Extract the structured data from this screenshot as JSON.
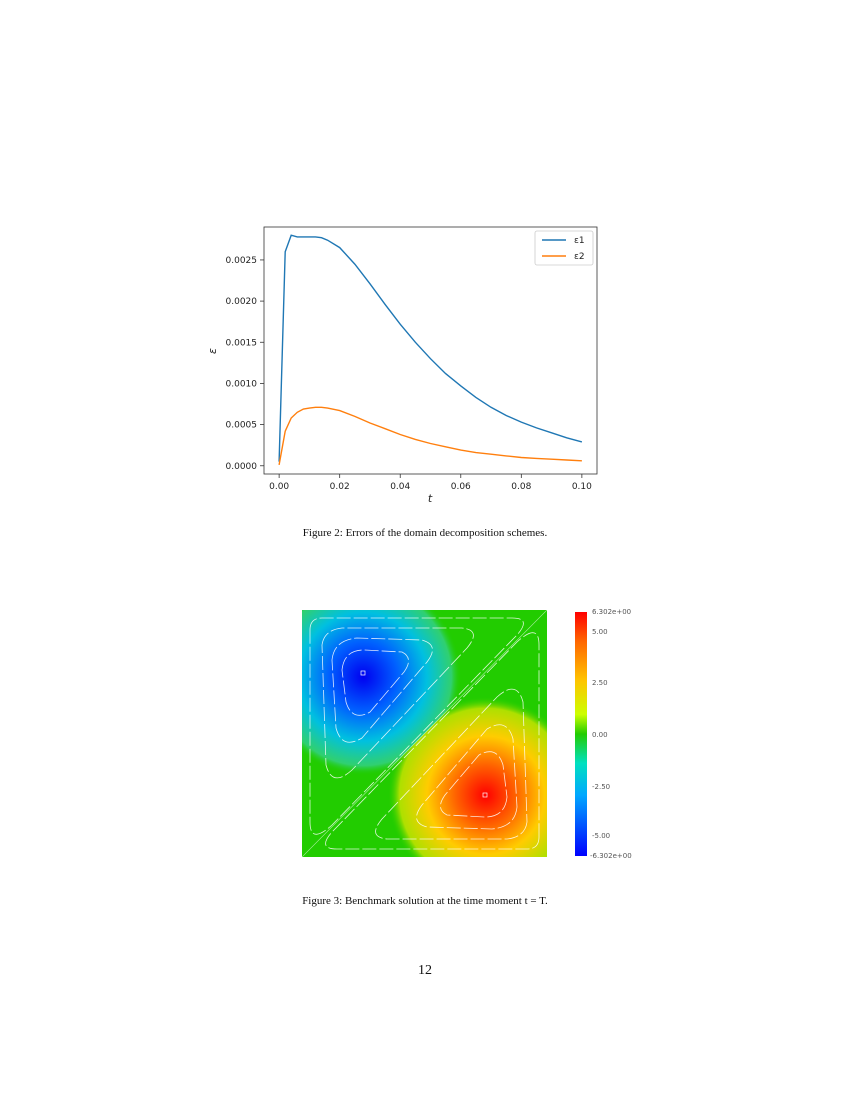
{
  "figure2": {
    "caption": "Figure 2: Errors of the domain decomposition schemes.",
    "chart_data": {
      "type": "line",
      "xlabel": "t",
      "ylabel": "ε",
      "xlim": [
        -0.005,
        0.105
      ],
      "ylim": [
        -0.0001,
        0.0029
      ],
      "xticks": [
        "0.00",
        "0.02",
        "0.04",
        "0.06",
        "0.08",
        "0.10"
      ],
      "yticks": [
        "0.0000",
        "0.0005",
        "0.0010",
        "0.0015",
        "0.0020",
        "0.0025"
      ],
      "legend_position": "top-right",
      "grid": false,
      "series": [
        {
          "name": "ε1",
          "color": "#1f77b4",
          "x": [
            0.0,
            0.002,
            0.004,
            0.006,
            0.008,
            0.01,
            0.012,
            0.014,
            0.016,
            0.02,
            0.025,
            0.03,
            0.035,
            0.04,
            0.045,
            0.05,
            0.055,
            0.06,
            0.065,
            0.07,
            0.075,
            0.08,
            0.085,
            0.09,
            0.095,
            0.1
          ],
          "y": [
            5e-05,
            0.0026,
            0.0028,
            0.00278,
            0.00278,
            0.00278,
            0.00278,
            0.00277,
            0.00274,
            0.00265,
            0.00245,
            0.00221,
            0.00196,
            0.00172,
            0.0015,
            0.0013,
            0.00112,
            0.00097,
            0.00083,
            0.00071,
            0.00061,
            0.00053,
            0.00046,
            0.0004,
            0.00034,
            0.00029
          ]
        },
        {
          "name": "ε2",
          "color": "#ff7f0e",
          "x": [
            0.0,
            0.002,
            0.004,
            0.006,
            0.008,
            0.01,
            0.012,
            0.014,
            0.016,
            0.02,
            0.025,
            0.03,
            0.035,
            0.04,
            0.045,
            0.05,
            0.055,
            0.06,
            0.065,
            0.07,
            0.075,
            0.08,
            0.085,
            0.09,
            0.095,
            0.1
          ],
          "y": [
            1e-05,
            0.00042,
            0.00058,
            0.00065,
            0.00069,
            0.0007,
            0.00071,
            0.00071,
            0.0007,
            0.00067,
            0.0006,
            0.00052,
            0.00045,
            0.00038,
            0.00032,
            0.00027,
            0.00023,
            0.00019,
            0.00016,
            0.00014,
            0.00012,
            0.0001,
            9e-05,
            8e-05,
            7e-05,
            6e-05
          ]
        }
      ]
    }
  },
  "figure3": {
    "caption": "Figure 3: Benchmark solution at the time moment t = T.",
    "colorbar": {
      "labels": [
        "6.302e+00",
        "5.00",
        "2.50",
        "0.00",
        "-2.50",
        "-5.00",
        "-6.302e+00"
      ],
      "colors": [
        "#ff0000",
        "#ffc400",
        "#22cc00",
        "#00a8ff",
        "#0000ff"
      ]
    }
  },
  "page_number": "12"
}
